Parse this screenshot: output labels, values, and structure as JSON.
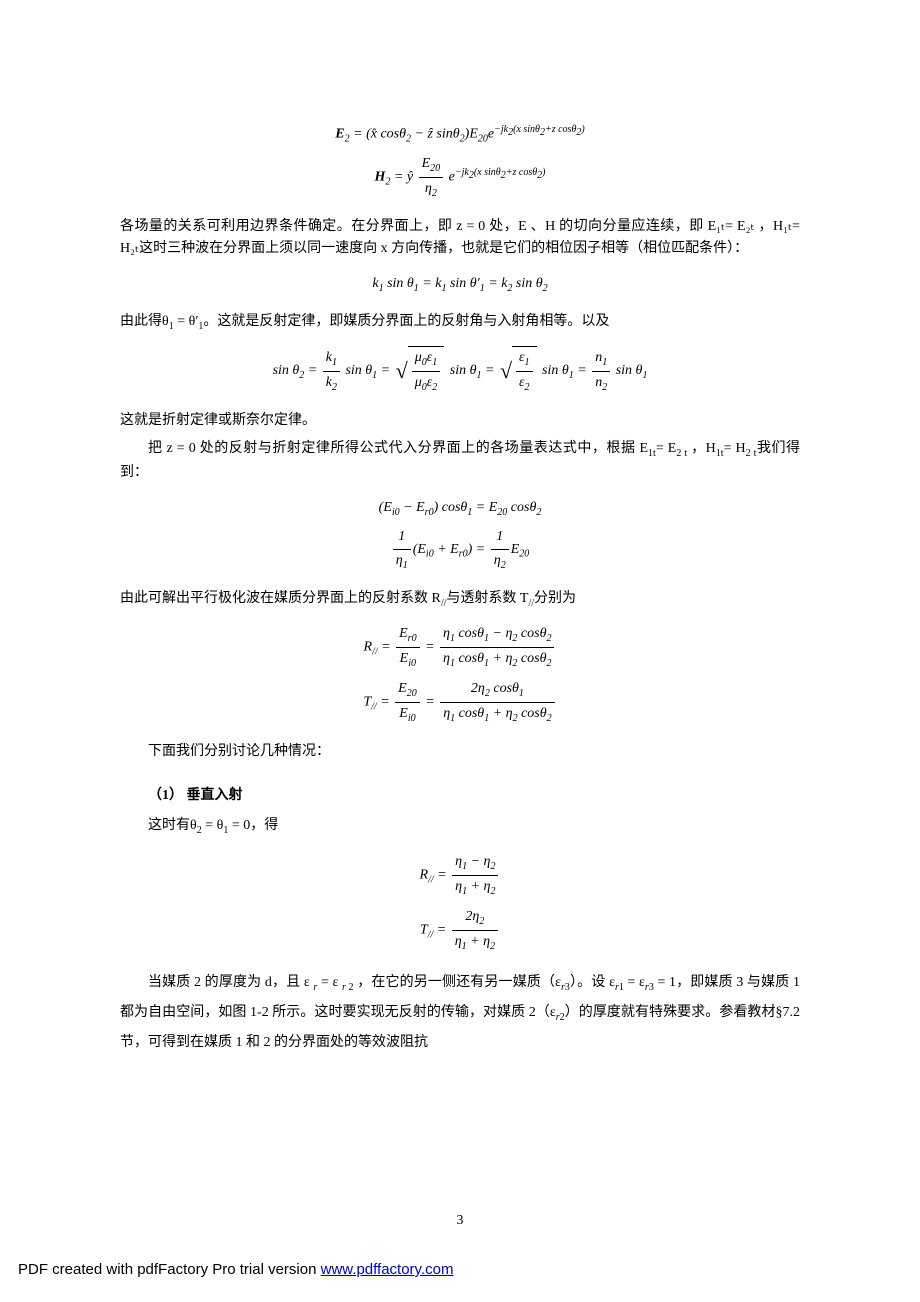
{
  "equations_e2_h2": {
    "e2": "E₂ = (x̂ cosθ₂ − ẑ sinθ₂) E₂₀ e^{−jk₂(x sinθ₂ + z cosθ₂)}",
    "h2": "H₂ = ŷ (E₂₀ / η₂) e^{−jk₂(x sinθ₂ + z cosθ₂)}"
  },
  "para1": "各场量的关系可利用边界条件确定。在分界面上，即 z = 0 处，E 、H 的切向分量应连续，即 E₁ₜ= E₂ₜ ，H₁ₜ= H₂ₜ这时三种波在分界面上须以同一速度向 x 方向传播，也就是它们的相位因子相等（相位匹配条件）：",
  "eq_phase_match": "k₁ sinθ₁ = k₁ sinθ′₁ = k₂ sinθ₂",
  "para2": "由此得θ₁ = θ′₁。这就是反射定律，即媒质分界面上的反射角与入射角相等。以及",
  "eq_snell": "sinθ₂ = (k₁/k₂) sinθ₁ = √(μ₀ε₁/μ₀ε₂) sinθ₁ = √(ε₁/ε₂) sinθ₁ = (n₁/n₂) sinθ₁",
  "para3": "这就是折射定律或斯奈尔定律。",
  "para4": "把 z = 0 处的反射与折射定律所得公式代入分界面上的各场量表达式中，根据 E₁ₜ= E₂ₜ ，H₁ₜ= H₂ₜ我们得到：",
  "eq_boundary": {
    "l1": "(Eᵢ₀ − Eᵣ₀) cosθ₁ = E₂₀ cosθ₂",
    "l2": "(1/η₁)(Eᵢ₀ + Eᵣ₀) = (1/η₂) E₂₀"
  },
  "para5": "由此可解出平行极化波在媒质分界面上的反射系数 R∥与透射系数 T∥分别为",
  "eq_rt": {
    "r": "R∥ = Eᵣ₀/Eᵢ₀ = (η₁cosθ₁ − η₂cosθ₂)/(η₁cosθ₁ + η₂cosθ₂)",
    "t": "T∥ = E₂₀/Eᵢ₀ = 2η₂cosθ₁/(η₁cosθ₁ + η₂cosθ₂)"
  },
  "para6": "下面我们分别讨论几种情况：",
  "section1_title": "（1） 垂直入射",
  "section1_intro": "这时有θ₂ = θ₁ = 0，得",
  "eq_normal": {
    "r": "R∥ = (η₁ − η₂)/(η₁ + η₂)",
    "t": "T∥ = 2η₂/(η₁ + η₂)"
  },
  "para7": "当媒质 2 的厚度为 d，且 ε_r = ε_r₂ ，在它的另一侧还有另一媒质（ε_r₃）。设 ε_r₁ = ε_r₃ = 1，即媒质 3 与媒质 1 都为自由空间，如图 1-2 所示。这时要实现无反射的传输，对媒质 2（ε_r₂）的厚度就有特殊要求。参看教材§7.2 节，可得到在媒质 1 和 2 的分界面处的等效波阻抗",
  "page_number": "3",
  "footer_text": "PDF created with pdfFactory Pro trial version ",
  "footer_link": "www.pdffactory.com"
}
